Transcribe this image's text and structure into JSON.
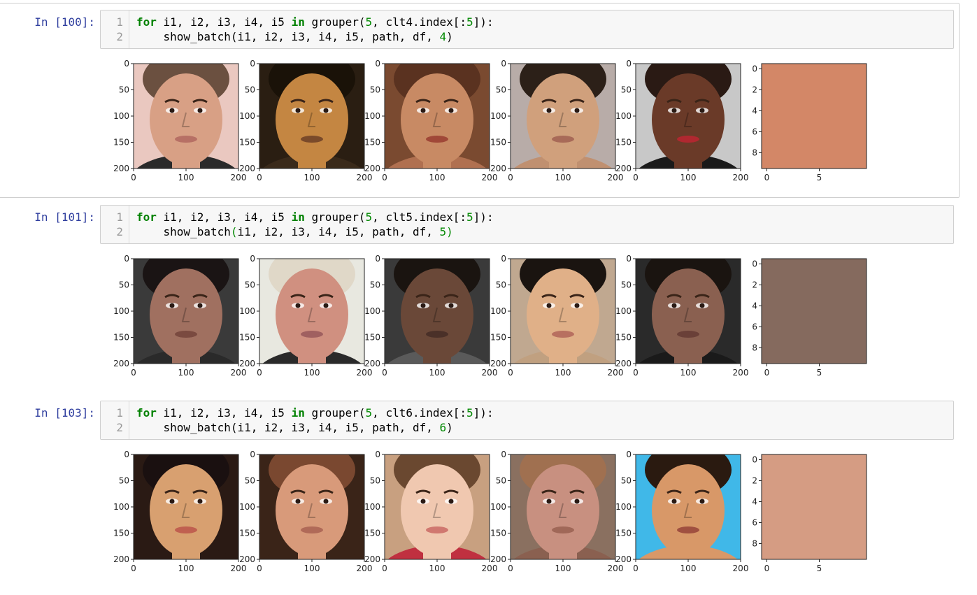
{
  "cells": [
    {
      "prompt": "In [100]:",
      "line_numbers": [
        "1",
        "2"
      ],
      "code": [
        [
          {
            "t": "for",
            "c": "kw"
          },
          {
            "t": " i1, i2, i3, i4, i5 ",
            "c": ""
          },
          {
            "t": "in",
            "c": "kw"
          },
          {
            "t": " grouper(",
            "c": ""
          },
          {
            "t": "5",
            "c": "num"
          },
          {
            "t": ", clt4.index[:",
            "c": ""
          },
          {
            "t": "5",
            "c": "num"
          },
          {
            "t": "]):",
            "c": ""
          }
        ],
        [
          {
            "t": "    show_batch(i1, i2, i3, i4, i5, path, df, ",
            "c": ""
          },
          {
            "t": "4",
            "c": "num"
          },
          {
            "t": ")",
            "c": ""
          }
        ]
      ],
      "swatch_color": "#d38767",
      "faces": [
        {
          "name": "face-man-smile",
          "bg": "#eac8c0",
          "skin": "#d8a085",
          "hair": "#6b5040",
          "cloth": "#2a2a2a",
          "lips": "#b77065"
        },
        {
          "name": "face-man-beard",
          "bg": "#2a1e12",
          "skin": "#c48642",
          "hair": "#1a1208",
          "cloth": "#3a2a1a",
          "lips": "#7a4a2a"
        },
        {
          "name": "face-woman-smile",
          "bg": "#7a4a30",
          "skin": "#c88a64",
          "hair": "#5a3220",
          "cloth": "#b07050",
          "lips": "#a04838"
        },
        {
          "name": "face-young-man",
          "bg": "#b8aca8",
          "skin": "#d0a07c",
          "hair": "#2c2018",
          "cloth": "#c09070",
          "lips": "#a86a58"
        },
        {
          "name": "face-woman-older",
          "bg": "#c8c8c8",
          "skin": "#6a3a28",
          "hair": "#2a1a14",
          "cloth": "#1a1a1a",
          "lips": "#b02830"
        }
      ]
    },
    {
      "prompt": "In [101]:",
      "line_numbers": [
        "1",
        "2"
      ],
      "code": [
        [
          {
            "t": "for",
            "c": "kw"
          },
          {
            "t": " i1, i2, i3, i4, i5 ",
            "c": ""
          },
          {
            "t": "in",
            "c": "kw"
          },
          {
            "t": " grouper(",
            "c": ""
          },
          {
            "t": "5",
            "c": "num"
          },
          {
            "t": ", clt5.index[:",
            "c": ""
          },
          {
            "t": "5",
            "c": "num"
          },
          {
            "t": "]):",
            "c": ""
          }
        ],
        [
          {
            "t": "    show_batch",
            "c": ""
          },
          {
            "t": "(",
            "c": "br"
          },
          {
            "t": "i1, i2, i3, i4, i5, path, df, ",
            "c": ""
          },
          {
            "t": "5",
            "c": "num"
          },
          {
            "t": ")",
            "c": "br"
          }
        ]
      ],
      "swatch_color": "#856a5e",
      "faces": [
        {
          "name": "face-man-mustache",
          "bg": "#3a3a3a",
          "skin": "#a07060",
          "hair": "#1a1414",
          "cloth": "#2a2a2a",
          "lips": "#7a4a40"
        },
        {
          "name": "face-man-blond",
          "bg": "#e8e8e0",
          "skin": "#d09080",
          "hair": "#e0d8c8",
          "cloth": "#2a2a2a",
          "lips": "#a06060"
        },
        {
          "name": "face-man-dark-mustache",
          "bg": "#3a3a3a",
          "skin": "#6a4838",
          "hair": "#1a1410",
          "cloth": "#5a5a5a",
          "lips": "#4a3028"
        },
        {
          "name": "face-man-asian-smile",
          "bg": "#c0a890",
          "skin": "#e0b088",
          "hair": "#1a1410",
          "cloth": "#c0a080",
          "lips": "#b87060"
        },
        {
          "name": "face-man-older",
          "bg": "#2a2a2a",
          "skin": "#8a6050",
          "hair": "#1a1410",
          "cloth": "#1a1a1a",
          "lips": "#6a4038"
        }
      ]
    },
    {
      "prompt": "In [103]:",
      "line_numbers": [
        "1",
        "2"
      ],
      "code": [
        [
          {
            "t": "for",
            "c": "kw"
          },
          {
            "t": " i1, i2, i3, i4, i5 ",
            "c": ""
          },
          {
            "t": "in",
            "c": "kw"
          },
          {
            "t": " grouper(",
            "c": ""
          },
          {
            "t": "5",
            "c": "num"
          },
          {
            "t": ", clt6.index[:",
            "c": ""
          },
          {
            "t": "5",
            "c": "num"
          },
          {
            "t": "]):",
            "c": ""
          }
        ],
        [
          {
            "t": "    show_batch(i1, i2, i3, i4, i5, path, df, ",
            "c": ""
          },
          {
            "t": "6",
            "c": "num"
          },
          {
            "t": ")",
            "c": ""
          }
        ]
      ],
      "swatch_color": "#d59c83",
      "faces": [
        {
          "name": "face-woman-dark-hair",
          "bg": "#2a1a14",
          "skin": "#d8a070",
          "hair": "#1a1010",
          "cloth": "#2a1a14",
          "lips": "#c06050"
        },
        {
          "name": "face-man-brown-hair",
          "bg": "#3a2418",
          "skin": "#d89a7a",
          "hair": "#7a4830",
          "cloth": "#3a2418",
          "lips": "#b06a58"
        },
        {
          "name": "face-baby",
          "bg": "#c8a080",
          "skin": "#f0c8b0",
          "hair": "#6a4830",
          "cloth": "#c03040",
          "lips": "#d07870"
        },
        {
          "name": "face-man-blurry",
          "bg": "#8a7060",
          "skin": "#c89080",
          "hair": "#a07050",
          "cloth": "#8a6050",
          "lips": "#a06858"
        },
        {
          "name": "face-boy-smile",
          "bg": "#40b8e8",
          "skin": "#d89868",
          "hair": "#2a1a10",
          "cloth": "#d89868",
          "lips": "#a05040"
        }
      ]
    }
  ],
  "axes": {
    "face_y_ticks": [
      "0",
      "50",
      "100",
      "150",
      "200"
    ],
    "face_x_ticks": [
      "0",
      "100",
      "200"
    ],
    "swatch_y_ticks": [
      "0",
      "2",
      "4",
      "6",
      "8"
    ],
    "swatch_x_ticks": [
      "0",
      "5"
    ]
  }
}
